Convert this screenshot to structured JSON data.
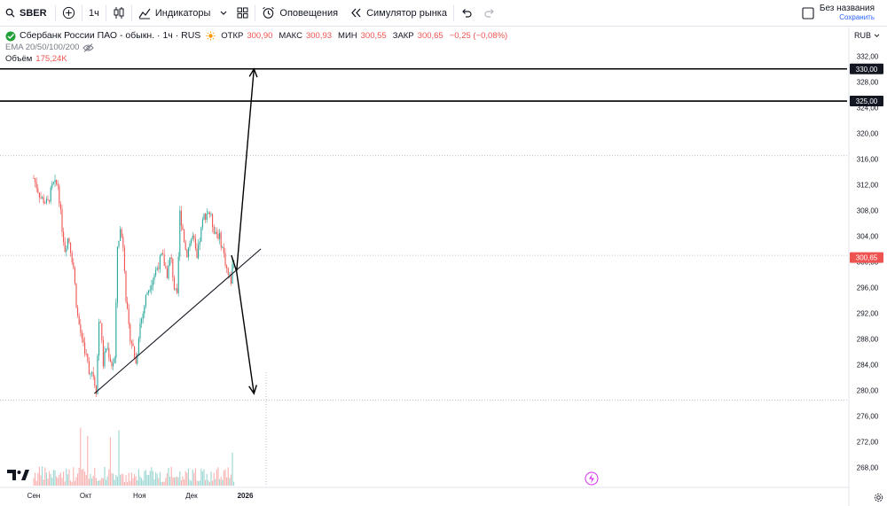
{
  "toolbar": {
    "symbol": "SBER",
    "interval": "1ч",
    "indicators_label": "Индикаторы",
    "alerts_label": "Оповещения",
    "replay_label": "Симулятор рынка",
    "layout_title": "Без названия",
    "layout_save": "Сохранить"
  },
  "legend": {
    "title": "Сбербанк России ПАО - обыкн. · 1ч · RUS",
    "open_label": "ОТКР",
    "open_value": "300,90",
    "high_label": "МАКС",
    "high_value": "300,93",
    "low_label": "МИН",
    "low_value": "300,55",
    "close_label": "ЗАКР",
    "close_value": "300,65",
    "change": "−0,25 (−0,08%)",
    "ema_label": "EMA 20/50/100/200",
    "volume_label": "Объём",
    "volume_value": "175,24K"
  },
  "currency": "RUB",
  "colors": {
    "up": "#26a69a",
    "down": "#ef5350",
    "accent": "#2962ff",
    "text": "#131722"
  },
  "chart_data": {
    "type": "candlestick",
    "title": "",
    "xlabel": "",
    "ylabel": "",
    "ylim": [
      266,
      333
    ],
    "y_ticks": [
      "332,00",
      "328,00",
      "324,00",
      "320,00",
      "316,00",
      "312,00",
      "308,00",
      "304,00",
      "300,00",
      "296,00",
      "292,00",
      "288,00",
      "284,00",
      "280,00",
      "276,00",
      "272,00",
      "268,00"
    ],
    "x_ticks": [
      "Сен",
      "Окт",
      "Ноя",
      "Дек",
      "2026"
    ],
    "last_price": "300,65",
    "horizontal_levels": [
      {
        "value": 330.0,
        "label": "330,00"
      },
      {
        "value": 325.0,
        "label": "325,00"
      }
    ],
    "price_path": [
      {
        "date": "2025-09-01",
        "price": 313
      },
      {
        "date": "2025-09-05",
        "price": 310
      },
      {
        "date": "2025-09-09",
        "price": 309
      },
      {
        "date": "2025-09-12",
        "price": 312
      },
      {
        "date": "2025-09-15",
        "price": 312
      },
      {
        "date": "2025-09-17",
        "price": 306
      },
      {
        "date": "2025-09-19",
        "price": 302
      },
      {
        "date": "2025-09-21",
        "price": 304
      },
      {
        "date": "2025-09-24",
        "price": 299
      },
      {
        "date": "2025-09-26",
        "price": 292
      },
      {
        "date": "2025-09-28",
        "price": 289
      },
      {
        "date": "2025-09-30",
        "price": 287
      },
      {
        "date": "2025-10-03",
        "price": 283
      },
      {
        "date": "2025-10-05",
        "price": 283
      },
      {
        "date": "2025-10-07",
        "price": 280
      },
      {
        "date": "2025-10-09",
        "price": 293
      },
      {
        "date": "2025-10-11",
        "price": 284
      },
      {
        "date": "2025-10-13",
        "price": 287
      },
      {
        "date": "2025-10-16",
        "price": 284
      },
      {
        "date": "2025-10-18",
        "price": 285
      },
      {
        "date": "2025-10-19",
        "price": 302
      },
      {
        "date": "2025-10-21",
        "price": 305
      },
      {
        "date": "2025-10-23",
        "price": 302
      },
      {
        "date": "2025-10-24",
        "price": 295
      },
      {
        "date": "2025-10-26",
        "price": 289
      },
      {
        "date": "2025-10-28",
        "price": 287
      },
      {
        "date": "2025-10-30",
        "price": 284
      },
      {
        "date": "2025-11-01",
        "price": 290
      },
      {
        "date": "2025-11-03",
        "price": 292
      },
      {
        "date": "2025-11-05",
        "price": 295
      },
      {
        "date": "2025-11-08",
        "price": 297
      },
      {
        "date": "2025-11-11",
        "price": 299
      },
      {
        "date": "2025-11-14",
        "price": 301
      },
      {
        "date": "2025-11-17",
        "price": 298
      },
      {
        "date": "2025-11-19",
        "price": 301
      },
      {
        "date": "2025-11-21",
        "price": 296
      },
      {
        "date": "2025-11-23",
        "price": 294
      },
      {
        "date": "2025-11-24",
        "price": 308
      },
      {
        "date": "2025-11-26",
        "price": 305
      },
      {
        "date": "2025-11-28",
        "price": 301
      },
      {
        "date": "2025-11-30",
        "price": 303
      },
      {
        "date": "2025-12-02",
        "price": 304
      },
      {
        "date": "2025-12-04",
        "price": 300
      },
      {
        "date": "2025-12-06",
        "price": 304
      },
      {
        "date": "2025-12-08",
        "price": 307
      },
      {
        "date": "2025-12-11",
        "price": 308
      },
      {
        "date": "2025-12-14",
        "price": 305
      },
      {
        "date": "2025-12-17",
        "price": 304
      },
      {
        "date": "2025-12-19",
        "price": 302
      },
      {
        "date": "2025-12-22",
        "price": 298
      },
      {
        "date": "2025-12-24",
        "price": 297
      },
      {
        "date": "2025-12-25",
        "price": 301
      },
      {
        "date": "2025-12-26",
        "price": 300.65
      }
    ],
    "trendline": [
      {
        "date": "2025-10-06",
        "price": 279.5
      },
      {
        "date": "2026-01-10",
        "price": 302
      }
    ],
    "projection_up": [
      {
        "date": "2025-12-24",
        "price": 301
      },
      {
        "date": "2025-12-27",
        "price": 298.5
      },
      {
        "date": "2026-01-06",
        "price": 330
      }
    ],
    "projection_down": [
      {
        "date": "2025-12-27",
        "price": 298.5
      },
      {
        "date": "2026-01-06",
        "price": 279.5
      }
    ],
    "volume": {
      "label": "Объём",
      "last": "175,24K"
    }
  }
}
